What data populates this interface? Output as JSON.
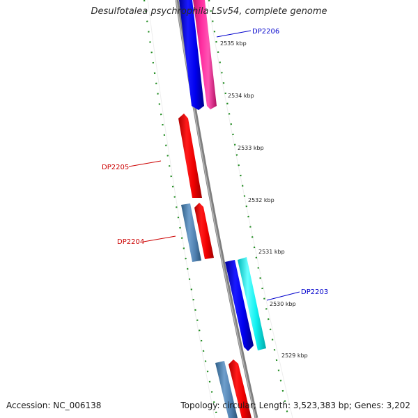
{
  "title": "Desulfotalea psychrophila LSv54, complete genome",
  "footer": {
    "accession": "Accession: NC_006138",
    "summary": "Topology: circular; Length: 3,523,383 bp; Genes: 3,202"
  },
  "colors": {
    "forward_label": "#0000cc",
    "reverse_label": "#cc0000",
    "backbone": "#888888",
    "tick": "#228b22"
  },
  "axis": {
    "unit": "kbp",
    "ticks": [
      {
        "label": "2535 kbp"
      },
      {
        "label": "2534 kbp"
      },
      {
        "label": "2533 kbp"
      },
      {
        "label": "2532 kbp"
      },
      {
        "label": "2531 kbp"
      },
      {
        "label": "2530 kbp"
      },
      {
        "label": "2529 kbp"
      }
    ]
  },
  "gene_labels": [
    {
      "text": "DP2206",
      "strand": "forward"
    },
    {
      "text": "DP2205",
      "strand": "reverse"
    },
    {
      "text": "DP2204",
      "strand": "reverse"
    },
    {
      "text": "DP2203",
      "strand": "forward"
    }
  ]
}
